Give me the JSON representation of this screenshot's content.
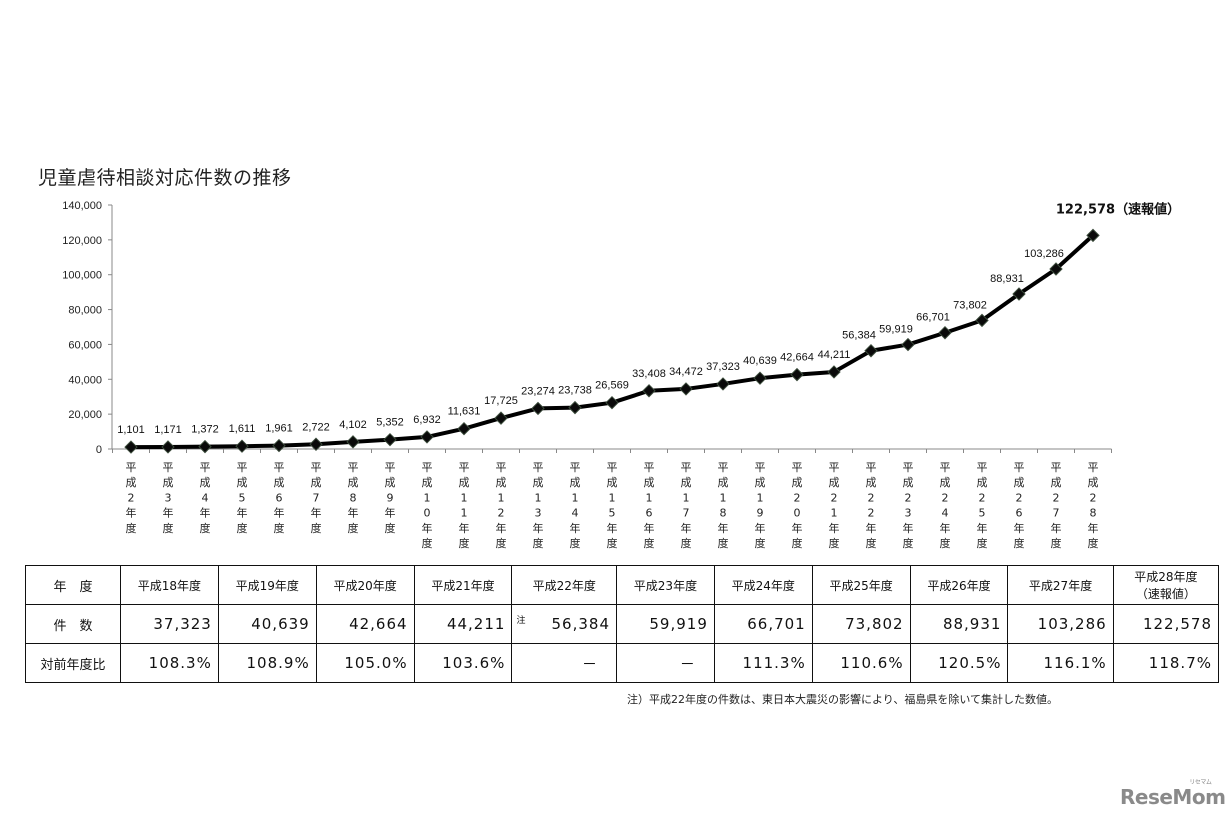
{
  "chart_data": {
    "type": "line",
    "title": "児童虐待相談対応件数の推移",
    "xlabel": "",
    "ylabel": "",
    "ylim": [
      0,
      140000
    ],
    "yticks": [
      "0",
      "20,000",
      "40,000",
      "60,000",
      "80,000",
      "100,000",
      "120,000",
      "140,000"
    ],
    "grid": false,
    "legend": null,
    "categories": [
      "平成2年度",
      "平成3年度",
      "平成4年度",
      "平成5年度",
      "平成6年度",
      "平成7年度",
      "平成8年度",
      "平成9年度",
      "平成10年度",
      "平成11年度",
      "平成12年度",
      "平成13年度",
      "平成14年度",
      "平成15年度",
      "平成16年度",
      "平成17年度",
      "平成18年度",
      "平成19年度",
      "平成20年度",
      "平成21年度",
      "平成22年度",
      "平成23年度",
      "平成24年度",
      "平成25年度",
      "平成26年度",
      "平成27年度",
      "平成28年度"
    ],
    "category_digits": [
      "2",
      "3",
      "4",
      "5",
      "6",
      "7",
      "8",
      "9",
      "10",
      "11",
      "12",
      "13",
      "14",
      "15",
      "16",
      "17",
      "18",
      "19",
      "20",
      "21",
      "22",
      "23",
      "24",
      "25",
      "26",
      "27",
      "28"
    ],
    "values": [
      1101,
      1171,
      1372,
      1611,
      1961,
      2722,
      4102,
      5352,
      6932,
      11631,
      17725,
      23274,
      23738,
      26569,
      33408,
      34472,
      37323,
      40639,
      42664,
      44211,
      56384,
      59919,
      66701,
      73802,
      88931,
      103286,
      122578
    ],
    "value_labels": [
      "1,101",
      "1,171",
      "1,372",
      "1,611",
      "1,961",
      "2,722",
      "4,102",
      "5,352",
      "6,932",
      "11,631",
      "17,725",
      "23,274",
      "23,738",
      "26,569",
      "33,408",
      "34,472",
      "37,323",
      "40,639",
      "42,664",
      "44,211",
      "56,384",
      "59,919",
      "66,701",
      "73,802",
      "88,931",
      "103,286",
      "122,578（速報値）"
    ],
    "annotations": [
      "122,578（速報値）"
    ],
    "marker": "diamond",
    "line_color": "#000000"
  },
  "table": {
    "header_label": "年　度",
    "count_label": "件　数",
    "ratio_label": "対前年度比",
    "columns": [
      {
        "year": "平成18年度",
        "count": "37,323",
        "ratio": "108.3%"
      },
      {
        "year": "平成19年度",
        "count": "40,639",
        "ratio": "108.9%"
      },
      {
        "year": "平成20年度",
        "count": "42,664",
        "ratio": "105.0%"
      },
      {
        "year": "平成21年度",
        "count": "44,211",
        "ratio": "103.6%"
      },
      {
        "year": "平成22年度",
        "count": "56,384",
        "ratio": "－",
        "note": "注"
      },
      {
        "year": "平成23年度",
        "count": "59,919",
        "ratio": "－"
      },
      {
        "year": "平成24年度",
        "count": "66,701",
        "ratio": "111.3%"
      },
      {
        "year": "平成25年度",
        "count": "73,802",
        "ratio": "110.6%"
      },
      {
        "year": "平成26年度",
        "count": "88,931",
        "ratio": "120.5%"
      },
      {
        "year": "平成27年度",
        "count": "103,286",
        "ratio": "116.1%"
      },
      {
        "year": "平成28年度",
        "year_sub": "（速報値）",
        "count": "122,578",
        "ratio": "118.7%"
      }
    ]
  },
  "footnote": "注）平成22年度の件数は、東日本大震災の影響により、福島県を除いて集計した数値。",
  "watermark": {
    "text": "ReseMom",
    "sub": "リセマム"
  }
}
